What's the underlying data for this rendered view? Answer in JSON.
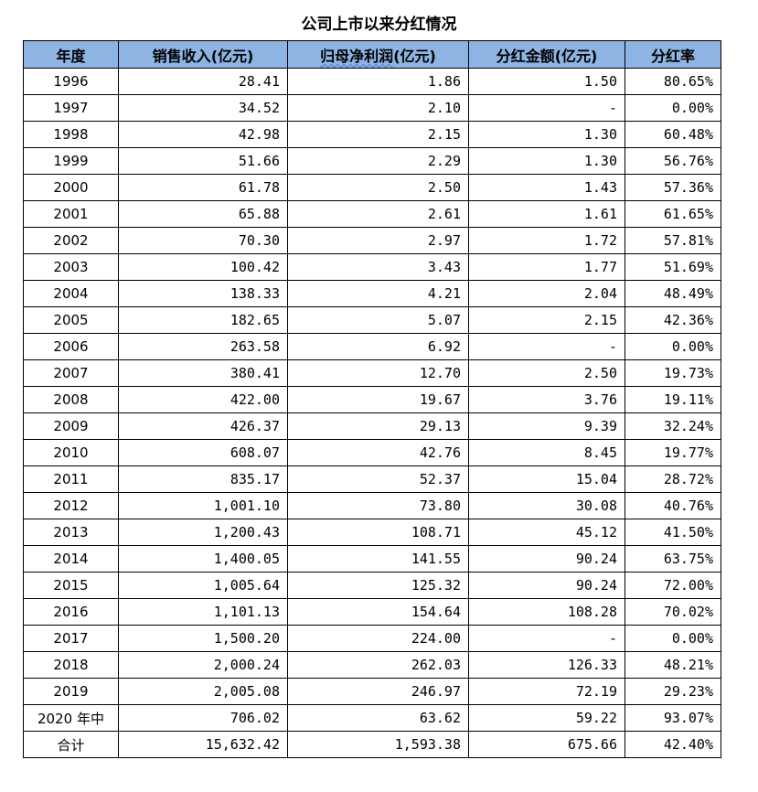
{
  "title": "公司上市以来分红情况",
  "headers": {
    "year": "年度",
    "revenue_a": "销售收入",
    "revenue_b": "(亿元)",
    "profit_a": "归母净利润",
    "profit_b": "(亿元)",
    "dividend_a": "分红金额",
    "dividend_b": "(亿元)",
    "ratio": "分红率"
  },
  "rows": [
    {
      "year": "1996",
      "revenue": "28.41",
      "profit": "1.86",
      "dividend": "1.50",
      "ratio": "80.65%"
    },
    {
      "year": "1997",
      "revenue": "34.52",
      "profit": "2.10",
      "dividend": "-",
      "ratio": "0.00%"
    },
    {
      "year": "1998",
      "revenue": "42.98",
      "profit": "2.15",
      "dividend": "1.30",
      "ratio": "60.48%"
    },
    {
      "year": "1999",
      "revenue": "51.66",
      "profit": "2.29",
      "dividend": "1.30",
      "ratio": "56.76%"
    },
    {
      "year": "2000",
      "revenue": "61.78",
      "profit": "2.50",
      "dividend": "1.43",
      "ratio": "57.36%"
    },
    {
      "year": "2001",
      "revenue": "65.88",
      "profit": "2.61",
      "dividend": "1.61",
      "ratio": "61.65%"
    },
    {
      "year": "2002",
      "revenue": "70.30",
      "profit": "2.97",
      "dividend": "1.72",
      "ratio": "57.81%"
    },
    {
      "year": "2003",
      "revenue": "100.42",
      "profit": "3.43",
      "dividend": "1.77",
      "ratio": "51.69%"
    },
    {
      "year": "2004",
      "revenue": "138.33",
      "profit": "4.21",
      "dividend": "2.04",
      "ratio": "48.49%"
    },
    {
      "year": "2005",
      "revenue": "182.65",
      "profit": "5.07",
      "dividend": "2.15",
      "ratio": "42.36%"
    },
    {
      "year": "2006",
      "revenue": "263.58",
      "profit": "6.92",
      "dividend": "-",
      "ratio": "0.00%"
    },
    {
      "year": "2007",
      "revenue": "380.41",
      "profit": "12.70",
      "dividend": "2.50",
      "ratio": "19.73%"
    },
    {
      "year": "2008",
      "revenue": "422.00",
      "profit": "19.67",
      "dividend": "3.76",
      "ratio": "19.11%"
    },
    {
      "year": "2009",
      "revenue": "426.37",
      "profit": "29.13",
      "dividend": "9.39",
      "ratio": "32.24%"
    },
    {
      "year": "2010",
      "revenue": "608.07",
      "profit": "42.76",
      "dividend": "8.45",
      "ratio": "19.77%"
    },
    {
      "year": "2011",
      "revenue": "835.17",
      "profit": "52.37",
      "dividend": "15.04",
      "ratio": "28.72%"
    },
    {
      "year": "2012",
      "revenue": "1,001.10",
      "profit": "73.80",
      "dividend": "30.08",
      "ratio": "40.76%"
    },
    {
      "year": "2013",
      "revenue": "1,200.43",
      "profit": "108.71",
      "dividend": "45.12",
      "ratio": "41.50%"
    },
    {
      "year": "2014",
      "revenue": "1,400.05",
      "profit": "141.55",
      "dividend": "90.24",
      "ratio": "63.75%"
    },
    {
      "year": "2015",
      "revenue": "1,005.64",
      "profit": "125.32",
      "dividend": "90.24",
      "ratio": "72.00%"
    },
    {
      "year": "2016",
      "revenue": "1,101.13",
      "profit": "154.64",
      "dividend": "108.28",
      "ratio": "70.02%"
    },
    {
      "year": "2017",
      "revenue": "1,500.20",
      "profit": "224.00",
      "dividend": "-",
      "ratio": "0.00%"
    },
    {
      "year": "2018",
      "revenue": "2,000.24",
      "profit": "262.03",
      "dividend": "126.33",
      "ratio": "48.21%"
    },
    {
      "year": "2019",
      "revenue": "2,005.08",
      "profit": "246.97",
      "dividend": "72.19",
      "ratio": "29.23%"
    },
    {
      "year": "2020 年中",
      "revenue": "706.02",
      "profit": "63.62",
      "dividend": "59.22",
      "ratio": "93.07%"
    },
    {
      "year": "合计",
      "revenue": "15,632.42",
      "profit": "1,593.38",
      "dividend": "675.66",
      "ratio": "42.40%"
    }
  ]
}
